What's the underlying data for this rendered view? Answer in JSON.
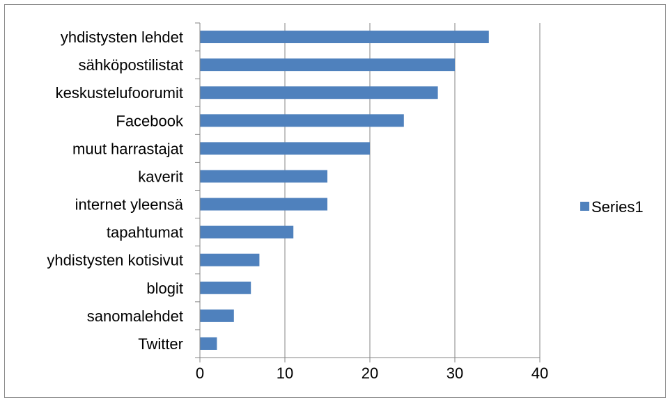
{
  "chart_data": {
    "type": "bar",
    "orientation": "horizontal",
    "categories": [
      "yhdistysten lehdet",
      "sähköpostilistat",
      "keskustelufoorumit",
      "Facebook",
      "muut harrastajat",
      "kaverit",
      "internet yleensä",
      "tapahtumat",
      "yhdistysten kotisivut",
      "blogit",
      "sanomalehdet",
      "Twitter"
    ],
    "series": [
      {
        "name": "Series1",
        "values": [
          34,
          30,
          28,
          24,
          20,
          15,
          15,
          11,
          7,
          6,
          4,
          2
        ]
      }
    ],
    "xlim": [
      0,
      40
    ],
    "xticks": [
      0,
      10,
      20,
      30,
      40
    ],
    "xtick_labels": [
      "0",
      "10",
      "20",
      "30",
      "40"
    ],
    "grid": "vertical",
    "legend": "right",
    "colors": {
      "bar": "#4f81bd",
      "grid": "#868686",
      "border": "#8c8c8c"
    }
  }
}
